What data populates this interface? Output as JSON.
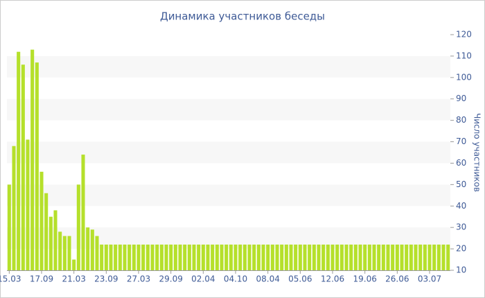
{
  "chart_data": {
    "type": "bar",
    "title": "Динамика участников беседы",
    "y_label": "Число участников",
    "categories": [
      "15.03",
      null,
      null,
      null,
      null,
      null,
      null,
      "17.09",
      null,
      null,
      null,
      null,
      null,
      null,
      "21.03",
      null,
      null,
      null,
      null,
      null,
      null,
      "23.09",
      null,
      null,
      null,
      null,
      null,
      null,
      "27.03",
      null,
      null,
      null,
      null,
      null,
      null,
      "29.09",
      null,
      null,
      null,
      null,
      null,
      null,
      "02.04",
      null,
      null,
      null,
      null,
      null,
      null,
      "04.10",
      null,
      null,
      null,
      null,
      null,
      null,
      "08.04",
      null,
      null,
      null,
      null,
      null,
      null,
      "05.06",
      null,
      null,
      null,
      null,
      null,
      null,
      "12.06",
      null,
      null,
      null,
      null,
      null,
      null,
      "19.06",
      null,
      null,
      null,
      null,
      null,
      null,
      "26.06",
      null,
      null,
      null,
      null,
      null,
      null,
      "03.07",
      null,
      null,
      null,
      null
    ],
    "values": [
      50,
      68,
      112,
      106,
      71,
      113,
      107,
      56,
      46,
      35,
      38,
      28,
      26,
      26,
      15,
      50,
      64,
      30,
      29,
      26,
      22,
      22,
      22,
      22,
      22,
      22,
      22,
      22,
      22,
      22,
      22,
      22,
      22,
      22,
      22,
      22,
      22,
      22,
      22,
      22,
      22,
      22,
      22,
      22,
      22,
      22,
      22,
      22,
      22,
      22,
      22,
      22,
      22,
      22,
      22,
      22,
      22,
      22,
      22,
      22,
      22,
      22,
      22,
      22,
      22,
      22,
      22,
      22,
      22,
      22,
      22,
      22,
      22,
      22,
      22,
      22,
      22,
      22,
      22,
      22,
      22,
      22,
      22,
      22,
      22,
      22,
      22,
      22,
      22,
      22,
      22,
      22,
      22,
      22,
      22,
      22
    ],
    "color": "#b5e02b",
    "ylim": [
      10,
      120
    ],
    "yticks": [
      10,
      20,
      30,
      40,
      50,
      60,
      70,
      80,
      90,
      100,
      110,
      120
    ],
    "grid": "bands",
    "y_axis_side": "right"
  }
}
